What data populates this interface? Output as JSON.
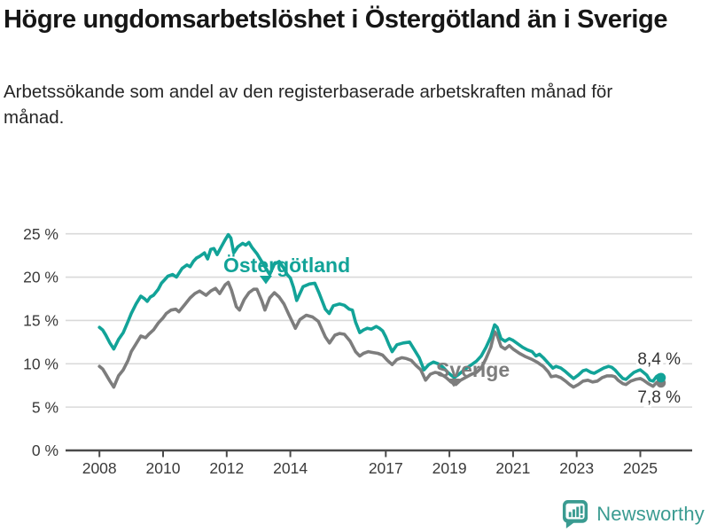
{
  "header": {
    "title": "Högre ungdomsarbetslöshet i Östergötland än i Sverige",
    "subtitle": "Arbetssökande som andel av den registerbaserade arbetskraften månad för månad."
  },
  "footer": {
    "brand": "Newsworthy"
  },
  "colors": {
    "ostergotland": "#12a398",
    "sverige": "#7d7d7d",
    "grid": "#d9d9d9",
    "axis": "#4a4a4a",
    "tick_text": "#3a3a3a",
    "end_label_text": "#333333",
    "logo": "#3a9b91"
  },
  "chart_data": {
    "type": "line",
    "title": "Högre ungdomsarbetslöshet i Östergötland än i Sverige",
    "xlabel": "",
    "ylabel": "",
    "unit": "%",
    "grid": true,
    "ylim": [
      0,
      25.5
    ],
    "x_ticks": [
      {
        "v": 2008,
        "label": "2008"
      },
      {
        "v": 2010,
        "label": "2010"
      },
      {
        "v": 2012,
        "label": "2012"
      },
      {
        "v": 2014,
        "label": "2014"
      },
      {
        "v": 2017,
        "label": "2017"
      },
      {
        "v": 2019,
        "label": "2019"
      },
      {
        "v": 2021,
        "label": "2021"
      },
      {
        "v": 2023,
        "label": "2023"
      },
      {
        "v": 2025,
        "label": "2025"
      }
    ],
    "y_ticks": [
      {
        "v": 0,
        "label": "0 %"
      },
      {
        "v": 5,
        "label": "5 %"
      },
      {
        "v": 10,
        "label": "10 %"
      },
      {
        "v": 15,
        "label": "15 %"
      },
      {
        "v": 20,
        "label": "20 %"
      },
      {
        "v": 25,
        "label": "25 %"
      }
    ],
    "series": [
      {
        "name": "Östergötland",
        "color": "#12a398",
        "end_label": "8,4 %",
        "points": [
          [
            2008.0,
            14.2
          ],
          [
            2008.1,
            13.9
          ],
          [
            2008.2,
            13.3
          ],
          [
            2008.33,
            12.4
          ],
          [
            2008.45,
            11.7
          ],
          [
            2008.6,
            12.8
          ],
          [
            2008.75,
            13.6
          ],
          [
            2008.9,
            14.9
          ],
          [
            2009.0,
            15.8
          ],
          [
            2009.15,
            16.9
          ],
          [
            2009.3,
            17.8
          ],
          [
            2009.42,
            17.5
          ],
          [
            2009.5,
            17.2
          ],
          [
            2009.6,
            17.7
          ],
          [
            2009.7,
            17.9
          ],
          [
            2009.85,
            18.6
          ],
          [
            2009.95,
            19.3
          ],
          [
            2010.05,
            19.7
          ],
          [
            2010.15,
            20.1
          ],
          [
            2010.3,
            20.3
          ],
          [
            2010.42,
            20.0
          ],
          [
            2010.6,
            21.0
          ],
          [
            2010.75,
            21.4
          ],
          [
            2010.85,
            21.2
          ],
          [
            2010.95,
            21.8
          ],
          [
            2011.05,
            22.2
          ],
          [
            2011.15,
            22.4
          ],
          [
            2011.3,
            22.8
          ],
          [
            2011.4,
            22.1
          ],
          [
            2011.5,
            23.2
          ],
          [
            2011.6,
            23.3
          ],
          [
            2011.7,
            22.6
          ],
          [
            2011.83,
            23.5
          ],
          [
            2011.95,
            24.3
          ],
          [
            2012.05,
            24.9
          ],
          [
            2012.13,
            24.5
          ],
          [
            2012.22,
            22.8
          ],
          [
            2012.35,
            23.5
          ],
          [
            2012.5,
            23.9
          ],
          [
            2012.6,
            23.7
          ],
          [
            2012.7,
            24.0
          ],
          [
            2012.8,
            23.4
          ],
          [
            2012.95,
            22.7
          ],
          [
            2013.1,
            21.8
          ],
          [
            2013.25,
            20.9
          ],
          [
            2013.35,
            20.3
          ],
          [
            2013.5,
            21.5
          ],
          [
            2013.65,
            21.8
          ],
          [
            2013.8,
            21.0
          ],
          [
            2013.9,
            20.3
          ],
          [
            2014.0,
            19.9
          ],
          [
            2014.1,
            18.8
          ],
          [
            2014.2,
            17.3
          ],
          [
            2014.4,
            18.9
          ],
          [
            2014.6,
            19.2
          ],
          [
            2014.77,
            19.3
          ],
          [
            2014.9,
            18.2
          ],
          [
            2015.1,
            16.3
          ],
          [
            2015.22,
            15.8
          ],
          [
            2015.35,
            16.7
          ],
          [
            2015.55,
            16.9
          ],
          [
            2015.7,
            16.75
          ],
          [
            2015.85,
            16.3
          ],
          [
            2015.95,
            16.2
          ],
          [
            2016.05,
            14.8
          ],
          [
            2016.18,
            13.6
          ],
          [
            2016.3,
            13.9
          ],
          [
            2016.42,
            14.1
          ],
          [
            2016.55,
            14.0
          ],
          [
            2016.7,
            14.3
          ],
          [
            2016.8,
            14.1
          ],
          [
            2016.9,
            13.8
          ],
          [
            2017.0,
            13.1
          ],
          [
            2017.1,
            12.2
          ],
          [
            2017.2,
            11.4
          ],
          [
            2017.35,
            12.2
          ],
          [
            2017.55,
            12.4
          ],
          [
            2017.75,
            12.5
          ],
          [
            2017.9,
            11.6
          ],
          [
            2018.05,
            10.7
          ],
          [
            2018.2,
            9.3
          ],
          [
            2018.35,
            9.9
          ],
          [
            2018.5,
            10.2
          ],
          [
            2018.65,
            10.0
          ],
          [
            2018.8,
            9.6
          ],
          [
            2018.95,
            9.0
          ],
          [
            2019.15,
            8.4
          ],
          [
            2019.3,
            8.8
          ],
          [
            2019.5,
            9.4
          ],
          [
            2019.7,
            9.9
          ],
          [
            2019.85,
            10.3
          ],
          [
            2020.0,
            10.9
          ],
          [
            2020.15,
            11.9
          ],
          [
            2020.3,
            13.1
          ],
          [
            2020.42,
            14.5
          ],
          [
            2020.5,
            14.2
          ],
          [
            2020.62,
            12.9
          ],
          [
            2020.75,
            12.6
          ],
          [
            2020.88,
            12.9
          ],
          [
            2021.0,
            12.7
          ],
          [
            2021.15,
            12.3
          ],
          [
            2021.3,
            11.9
          ],
          [
            2021.45,
            11.6
          ],
          [
            2021.6,
            11.4
          ],
          [
            2021.72,
            10.9
          ],
          [
            2021.83,
            11.1
          ],
          [
            2021.95,
            10.7
          ],
          [
            2022.1,
            10.1
          ],
          [
            2022.25,
            9.5
          ],
          [
            2022.35,
            9.7
          ],
          [
            2022.5,
            9.5
          ],
          [
            2022.65,
            9.1
          ],
          [
            2022.8,
            8.6
          ],
          [
            2022.9,
            8.3
          ],
          [
            2023.05,
            8.7
          ],
          [
            2023.2,
            9.2
          ],
          [
            2023.3,
            9.3
          ],
          [
            2023.45,
            9.0
          ],
          [
            2023.55,
            8.9
          ],
          [
            2023.7,
            9.2
          ],
          [
            2023.85,
            9.5
          ],
          [
            2024.0,
            9.7
          ],
          [
            2024.1,
            9.6
          ],
          [
            2024.2,
            9.3
          ],
          [
            2024.32,
            8.8
          ],
          [
            2024.45,
            8.3
          ],
          [
            2024.55,
            8.2
          ],
          [
            2024.67,
            8.6
          ],
          [
            2024.8,
            9.0
          ],
          [
            2024.92,
            9.2
          ],
          [
            2025.0,
            9.3
          ],
          [
            2025.1,
            9.0
          ],
          [
            2025.2,
            8.7
          ],
          [
            2025.3,
            8.1
          ],
          [
            2025.4,
            8.0
          ],
          [
            2025.5,
            8.5
          ],
          [
            2025.58,
            8.7
          ],
          [
            2025.65,
            8.4
          ]
        ]
      },
      {
        "name": "Sverige",
        "color": "#7d7d7d",
        "end_label": "7,8 %",
        "points": [
          [
            2008.0,
            9.7
          ],
          [
            2008.1,
            9.4
          ],
          [
            2008.2,
            8.8
          ],
          [
            2008.33,
            8.0
          ],
          [
            2008.45,
            7.3
          ],
          [
            2008.6,
            8.6
          ],
          [
            2008.75,
            9.3
          ],
          [
            2008.9,
            10.4
          ],
          [
            2009.0,
            11.4
          ],
          [
            2009.15,
            12.3
          ],
          [
            2009.3,
            13.2
          ],
          [
            2009.45,
            13.0
          ],
          [
            2009.55,
            13.4
          ],
          [
            2009.7,
            13.9
          ],
          [
            2009.85,
            14.7
          ],
          [
            2010.0,
            15.3
          ],
          [
            2010.1,
            15.8
          ],
          [
            2010.25,
            16.2
          ],
          [
            2010.4,
            16.3
          ],
          [
            2010.5,
            16.0
          ],
          [
            2010.7,
            16.9
          ],
          [
            2010.85,
            17.6
          ],
          [
            2011.0,
            18.1
          ],
          [
            2011.15,
            18.4
          ],
          [
            2011.35,
            17.9
          ],
          [
            2011.5,
            18.4
          ],
          [
            2011.65,
            18.7
          ],
          [
            2011.78,
            18.1
          ],
          [
            2011.95,
            19.1
          ],
          [
            2012.05,
            19.4
          ],
          [
            2012.15,
            18.5
          ],
          [
            2012.3,
            16.6
          ],
          [
            2012.4,
            16.2
          ],
          [
            2012.55,
            17.4
          ],
          [
            2012.7,
            18.2
          ],
          [
            2012.85,
            18.6
          ],
          [
            2012.95,
            18.6
          ],
          [
            2013.1,
            17.3
          ],
          [
            2013.2,
            16.2
          ],
          [
            2013.35,
            17.6
          ],
          [
            2013.5,
            18.2
          ],
          [
            2013.65,
            17.7
          ],
          [
            2013.8,
            16.9
          ],
          [
            2013.95,
            15.7
          ],
          [
            2014.16,
            14.1
          ],
          [
            2014.3,
            15.1
          ],
          [
            2014.5,
            15.6
          ],
          [
            2014.7,
            15.4
          ],
          [
            2014.88,
            14.9
          ],
          [
            2015.1,
            13.1
          ],
          [
            2015.23,
            12.4
          ],
          [
            2015.4,
            13.3
          ],
          [
            2015.55,
            13.5
          ],
          [
            2015.7,
            13.4
          ],
          [
            2015.88,
            12.6
          ],
          [
            2016.05,
            11.4
          ],
          [
            2016.18,
            10.9
          ],
          [
            2016.3,
            11.2
          ],
          [
            2016.45,
            11.4
          ],
          [
            2016.6,
            11.3
          ],
          [
            2016.75,
            11.2
          ],
          [
            2016.9,
            11.0
          ],
          [
            2017.05,
            10.4
          ],
          [
            2017.2,
            9.9
          ],
          [
            2017.35,
            10.5
          ],
          [
            2017.5,
            10.7
          ],
          [
            2017.65,
            10.6
          ],
          [
            2017.8,
            10.4
          ],
          [
            2017.95,
            9.8
          ],
          [
            2018.1,
            9.3
          ],
          [
            2018.25,
            8.1
          ],
          [
            2018.4,
            8.8
          ],
          [
            2018.55,
            9.0
          ],
          [
            2018.7,
            8.9
          ],
          [
            2018.9,
            8.4
          ],
          [
            2019.05,
            7.9
          ],
          [
            2019.2,
            7.6
          ],
          [
            2019.35,
            8.1
          ],
          [
            2019.5,
            8.4
          ],
          [
            2019.7,
            8.8
          ],
          [
            2019.85,
            9.0
          ],
          [
            2020.0,
            9.5
          ],
          [
            2020.15,
            10.6
          ],
          [
            2020.3,
            11.9
          ],
          [
            2020.42,
            13.7
          ],
          [
            2020.5,
            13.3
          ],
          [
            2020.62,
            12.0
          ],
          [
            2020.75,
            11.7
          ],
          [
            2020.88,
            12.1
          ],
          [
            2021.0,
            11.7
          ],
          [
            2021.2,
            11.2
          ],
          [
            2021.4,
            10.8
          ],
          [
            2021.6,
            10.5
          ],
          [
            2021.75,
            10.2
          ],
          [
            2021.95,
            9.7
          ],
          [
            2022.1,
            9.1
          ],
          [
            2022.2,
            8.5
          ],
          [
            2022.35,
            8.6
          ],
          [
            2022.5,
            8.4
          ],
          [
            2022.65,
            8.0
          ],
          [
            2022.78,
            7.6
          ],
          [
            2022.9,
            7.3
          ],
          [
            2023.05,
            7.6
          ],
          [
            2023.2,
            8.0
          ],
          [
            2023.35,
            8.1
          ],
          [
            2023.5,
            7.9
          ],
          [
            2023.65,
            8.0
          ],
          [
            2023.8,
            8.4
          ],
          [
            2023.95,
            8.6
          ],
          [
            2024.1,
            8.6
          ],
          [
            2024.2,
            8.5
          ],
          [
            2024.3,
            8.1
          ],
          [
            2024.45,
            7.7
          ],
          [
            2024.55,
            7.6
          ],
          [
            2024.7,
            8.0
          ],
          [
            2024.85,
            8.2
          ],
          [
            2025.0,
            8.3
          ],
          [
            2025.1,
            8.1
          ],
          [
            2025.25,
            7.7
          ],
          [
            2025.4,
            7.4
          ],
          [
            2025.5,
            7.8
          ],
          [
            2025.58,
            8.0
          ],
          [
            2025.65,
            7.8
          ]
        ]
      }
    ]
  }
}
